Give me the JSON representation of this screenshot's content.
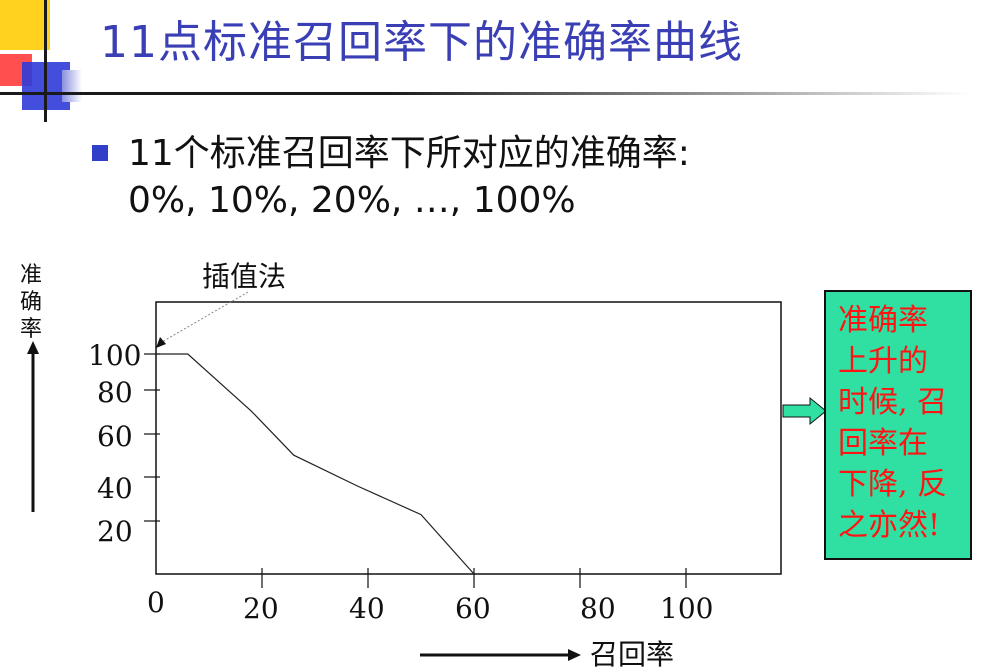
{
  "slide": {
    "title": "11点标准召回率下的准确率曲线",
    "bullet_line1": "11个标准召回率下所对应的准确率:",
    "bullet_line2": "0%, 10%, 20%, …, 100%",
    "callout_lines": [
      "准确率",
      "上升的",
      "时候, 召",
      "回率在",
      "下降, 反",
      "之亦然!"
    ],
    "colors": {
      "title": "#3a3fb5",
      "callout_bg": "#2fe0a2",
      "callout_text": "#ff1414",
      "bullet": "#3240c9"
    }
  },
  "chart_data": {
    "type": "line",
    "ylabel": "准确率",
    "xlabel": "召回率",
    "x_tick_labels": [
      "0",
      "20",
      "40",
      "60",
      "80",
      "100"
    ],
    "y_tick_labels": [
      "100",
      "80",
      "60",
      "40",
      "20"
    ],
    "annotation": "插值法",
    "series": [
      {
        "x": [
          0,
          6,
          18,
          26,
          38,
          50,
          60
        ],
        "y": [
          100,
          100,
          74,
          54,
          40,
          27,
          0
        ]
      }
    ]
  }
}
